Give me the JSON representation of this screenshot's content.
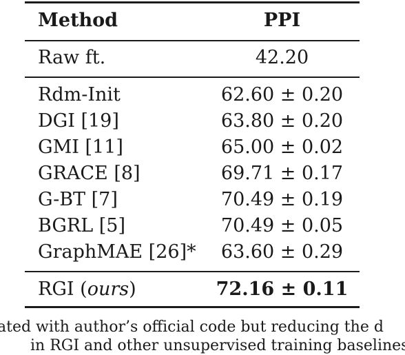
{
  "table": {
    "header": {
      "method": "Method",
      "value": "PPI"
    },
    "raw_row": {
      "method": "Raw ft.",
      "value": "42.20"
    },
    "rows": [
      {
        "method": "Rdm-Init",
        "value": "62.60 ± 0.20"
      },
      {
        "method": "DGI [19]",
        "value": "63.80 ± 0.20"
      },
      {
        "method": "GMI [11]",
        "value": "65.00 ± 0.02"
      },
      {
        "method": "GRACE [8]",
        "value": "69.71 ± 0.17"
      },
      {
        "method": "G-BT [7]",
        "value": "70.49 ± 0.19"
      },
      {
        "method": "BGRL [5]",
        "value": "70.49 ± 0.05"
      },
      {
        "method": "GraphMAE [26]*",
        "value": "63.60 ± 0.29"
      }
    ],
    "ours_row": {
      "method_prefix": "RGI (",
      "method_italic": "ours",
      "method_suffix": ")",
      "value": "72.16 ± 0.11"
    }
  },
  "caption": {
    "line1": "ated with author’s official code but reducing the d",
    "line2": "in RGI and other unsupervised training baselines"
  }
}
